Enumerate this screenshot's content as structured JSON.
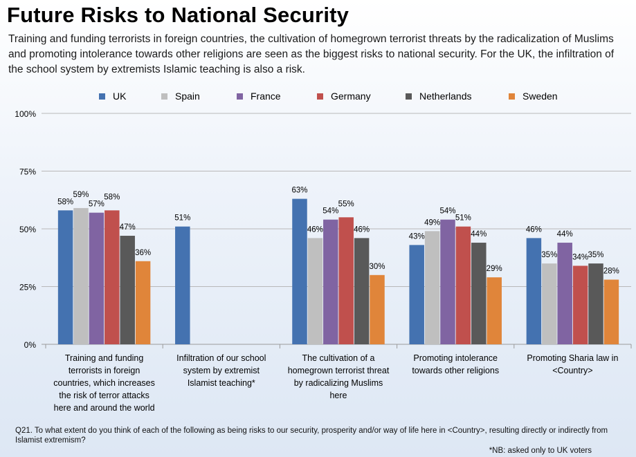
{
  "title": "Future Risks to National Security",
  "subtitle": "Training and funding terrorists in foreign countries, the cultivation of homegrown terrorist threats by the radicalization of Muslims and promoting intolerance towards other religions are seen as the biggest risks to national security.  For the UK, the infiltration of the school system by extremists Islamic teaching is also a risk.",
  "footnote": "Q21. To what extent do you think of each of the following as being risks to our security, prosperity and/or way of life here in <Country>, resulting directly or indirectly from Islamist extremism?",
  "nb_note": "*NB: asked only to UK voters",
  "chart_data": {
    "type": "bar",
    "categories": [
      [
        "Training and funding",
        "terrorists in foreign",
        "countries, which increases",
        "the risk of terror attacks",
        "here and around the world"
      ],
      [
        "Infiltration of our school",
        "system by extremist",
        "Islamist teaching*"
      ],
      [
        "The cultivation of a",
        "homegrown terrorist threat",
        "by radicalizing Muslims",
        "here"
      ],
      [
        "Promoting intolerance",
        "towards other religions"
      ],
      [
        "Promoting Sharia law in",
        "<Country>"
      ]
    ],
    "series": [
      {
        "name": "UK",
        "color": "#4472b0",
        "values": [
          58,
          51,
          63,
          43,
          46
        ]
      },
      {
        "name": "Spain",
        "color": "#bfbfbf",
        "values": [
          59,
          null,
          46,
          49,
          35
        ]
      },
      {
        "name": "France",
        "color": "#8064a2",
        "values": [
          57,
          null,
          54,
          54,
          44
        ]
      },
      {
        "name": "Germany",
        "color": "#c0504d",
        "values": [
          58,
          null,
          55,
          51,
          34
        ]
      },
      {
        "name": "Netherlands",
        "color": "#595959",
        "values": [
          47,
          null,
          46,
          44,
          35
        ]
      },
      {
        "name": "Sweden",
        "color": "#e0853a",
        "values": [
          36,
          null,
          30,
          29,
          28
        ]
      }
    ],
    "y_ticks": [
      "0%",
      "25%",
      "50%",
      "75%",
      "100%"
    ],
    "ylim": [
      0,
      100
    ],
    "legend_position": "top",
    "grid": true
  }
}
